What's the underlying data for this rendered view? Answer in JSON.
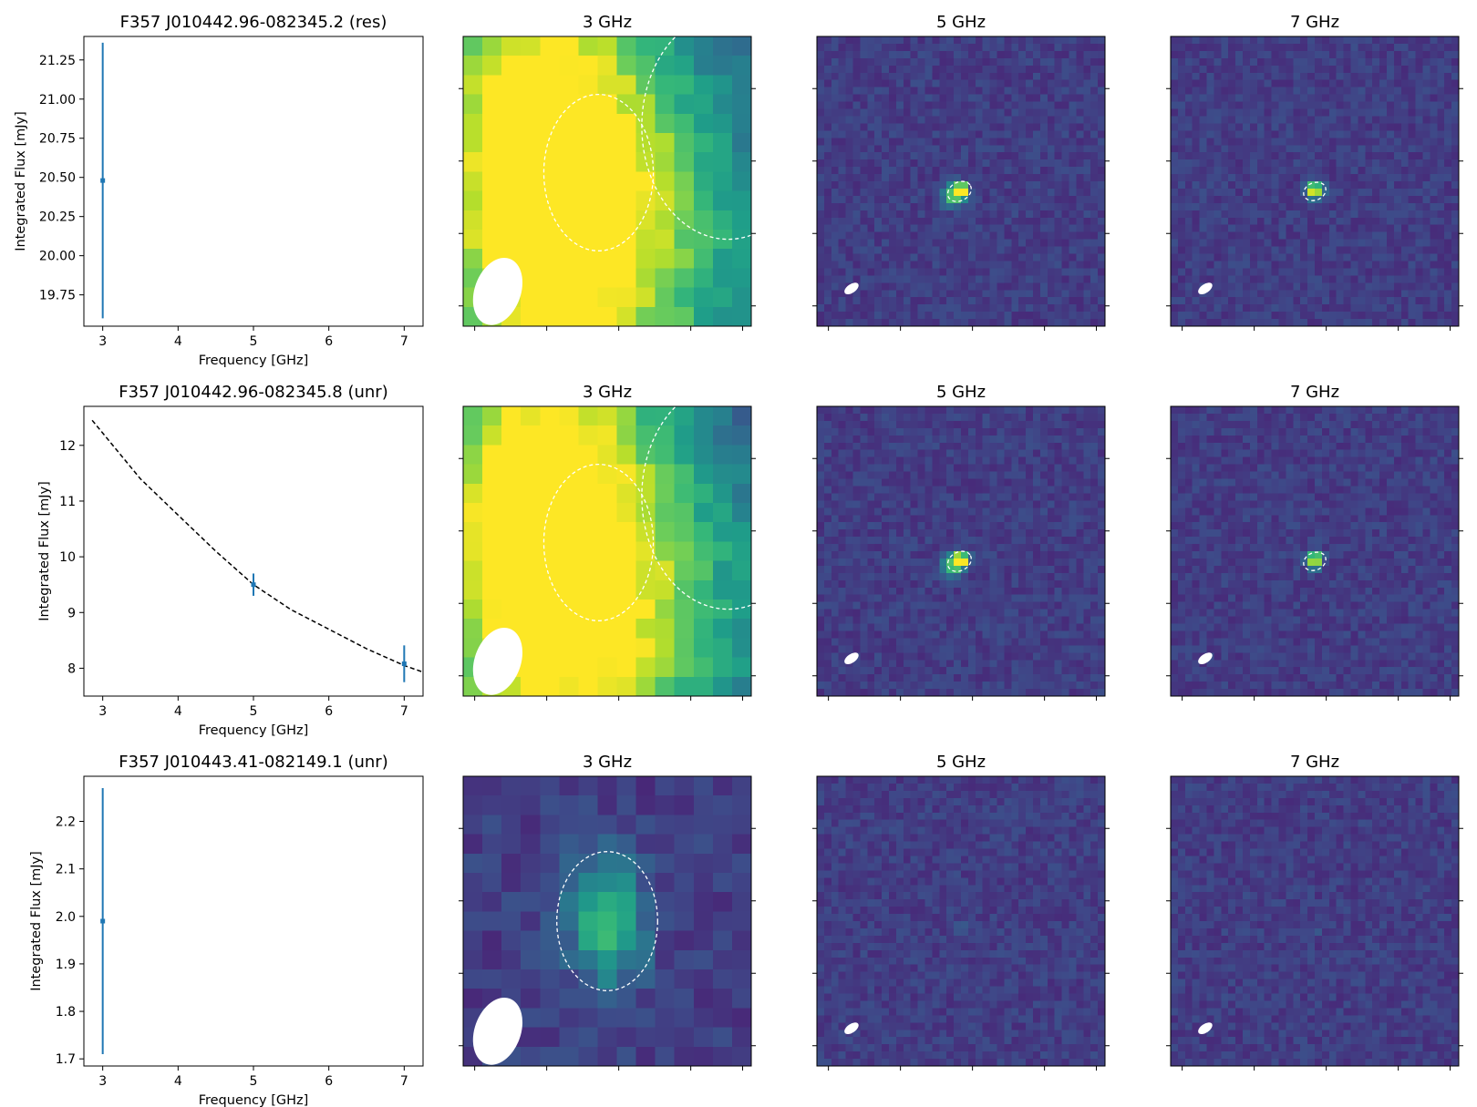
{
  "figure": {
    "background": "#ffffff",
    "errorbar_color": "#1f77b4",
    "model_line_color": "#000000",
    "contour_color": "#ffffff",
    "beam_color": "#ffffff",
    "colormap": "viridis"
  },
  "chart_data": [
    {
      "type": "scatter",
      "title": "F357 J010442.96-082345.2 (res)",
      "xlabel": "Frequency [GHz]",
      "ylabel": "Integrated Flux [mJy]",
      "xlim": [
        2.75,
        7.25
      ],
      "ylim": [
        19.55,
        21.4
      ],
      "xticks": [
        3,
        4,
        5,
        6,
        7
      ],
      "yticks": [
        19.75,
        20.0,
        20.25,
        20.5,
        20.75,
        21.0,
        21.25
      ],
      "ytick_labels": [
        "19.75",
        "20.00",
        "20.25",
        "20.50",
        "20.75",
        "21.00",
        "21.25"
      ],
      "series": [
        {
          "points": [
            {
              "x": 3,
              "y": 20.48,
              "yerr": 0.88
            }
          ]
        }
      ],
      "model_curve": null
    },
    {
      "type": "image",
      "title": "3 GHz",
      "colormap": "viridis",
      "pixel_grid": [
        15,
        15
      ],
      "sources": [
        [
          0.39,
          0.65,
          0.74,
          0.55,
          0.72
        ],
        [
          0.88,
          0.26,
          0.42,
          0.45,
          0.9
        ]
      ],
      "noise": 0.07,
      "seed": 11,
      "ellipses": [
        [
          0.47,
          0.47,
          0.19,
          0.27,
          0.0
        ],
        [
          0.92,
          0.31,
          0.3,
          0.39,
          0.0
        ]
      ],
      "beam": [
        0.12,
        0.12,
        0.08,
        0.12,
        0.35
      ]
    },
    {
      "type": "image",
      "title": "5 GHz",
      "colormap": "viridis",
      "pixel_grid": [
        40,
        40
      ],
      "sources": [
        [
          1.0,
          0.5,
          0.53,
          0.025,
          0.025
        ],
        [
          0.55,
          0.47,
          0.55,
          0.035,
          0.035
        ]
      ],
      "noise": 0.06,
      "seed": 22,
      "ellipses": [
        [
          0.495,
          0.535,
          0.043,
          0.032,
          -0.5
        ]
      ],
      "beam": [
        0.12,
        0.13,
        0.028,
        0.015,
        -0.6
      ]
    },
    {
      "type": "image",
      "title": "7 GHz",
      "colormap": "viridis",
      "pixel_grid": [
        40,
        40
      ],
      "sources": [
        [
          1.0,
          0.5,
          0.53,
          0.025,
          0.025
        ]
      ],
      "noise": 0.06,
      "seed": 33,
      "ellipses": [
        [
          0.5,
          0.535,
          0.04,
          0.03,
          -0.4
        ]
      ],
      "beam": [
        0.12,
        0.13,
        0.028,
        0.015,
        -0.6
      ]
    },
    {
      "type": "line",
      "title": "F357 J010442.96-082345.8 (unr)",
      "xlabel": "Frequency [GHz]",
      "ylabel": "Integrated Flux [mJy]",
      "xlim": [
        2.75,
        7.25
      ],
      "ylim": [
        7.5,
        12.7
      ],
      "xticks": [
        3,
        4,
        5,
        6,
        7
      ],
      "yticks": [
        8,
        9,
        10,
        11,
        12
      ],
      "ytick_labels": [
        "8",
        "9",
        "10",
        "11",
        "12"
      ],
      "series": [
        {
          "points": [
            {
              "x": 5,
              "y": 9.5,
              "yerr": 0.2
            },
            {
              "x": 7,
              "y": 8.08,
              "yerr": 0.33
            }
          ]
        }
      ],
      "model_curve": {
        "x_range": [
          2.86,
          7.25
        ],
        "points": [
          [
            2.86,
            12.45
          ],
          [
            3.5,
            11.4
          ],
          [
            4.0,
            10.75
          ],
          [
            4.5,
            10.1
          ],
          [
            5.0,
            9.5
          ],
          [
            5.5,
            9.05
          ],
          [
            6.0,
            8.7
          ],
          [
            6.5,
            8.35
          ],
          [
            7.0,
            8.05
          ],
          [
            7.25,
            7.93
          ]
        ],
        "style": "dashed"
      }
    },
    {
      "type": "image",
      "title": "3 GHz",
      "colormap": "viridis",
      "pixel_grid": [
        15,
        15
      ],
      "sources": [
        [
          0.39,
          0.65,
          0.74,
          0.55,
          0.72
        ],
        [
          0.88,
          0.26,
          0.42,
          0.45,
          0.9
        ]
      ],
      "noise": 0.07,
      "seed": 44,
      "ellipses": [
        [
          0.47,
          0.47,
          0.19,
          0.27,
          0.0
        ],
        [
          0.92,
          0.31,
          0.3,
          0.39,
          0.0
        ]
      ],
      "beam": [
        0.12,
        0.12,
        0.08,
        0.12,
        0.35
      ]
    },
    {
      "type": "image",
      "title": "5 GHz",
      "colormap": "viridis",
      "pixel_grid": [
        40,
        40
      ],
      "sources": [
        [
          1.0,
          0.5,
          0.53,
          0.025,
          0.025
        ],
        [
          0.55,
          0.47,
          0.55,
          0.035,
          0.035
        ]
      ],
      "noise": 0.06,
      "seed": 55,
      "ellipses": [
        [
          0.495,
          0.535,
          0.043,
          0.032,
          -0.5
        ]
      ],
      "beam": [
        0.12,
        0.13,
        0.028,
        0.015,
        -0.6
      ]
    },
    {
      "type": "image",
      "title": "7 GHz",
      "colormap": "viridis",
      "pixel_grid": [
        40,
        40
      ],
      "sources": [
        [
          1.0,
          0.5,
          0.53,
          0.025,
          0.025
        ]
      ],
      "noise": 0.06,
      "seed": 66,
      "ellipses": [
        [
          0.5,
          0.535,
          0.04,
          0.03,
          -0.4
        ]
      ],
      "beam": [
        0.12,
        0.13,
        0.028,
        0.015,
        -0.6
      ]
    },
    {
      "type": "scatter",
      "title": "F357 J010443.41-082149.1 (unr)",
      "xlabel": "Frequency [GHz]",
      "ylabel": "Integrated Flux [mJy]",
      "xlim": [
        2.75,
        7.25
      ],
      "ylim": [
        1.685,
        2.295
      ],
      "xticks": [
        3,
        4,
        5,
        6,
        7
      ],
      "yticks": [
        1.7,
        1.8,
        1.9,
        2.0,
        2.1,
        2.2
      ],
      "ytick_labels": [
        "1.7",
        "1.8",
        "1.9",
        "2.0",
        "2.1",
        "2.2"
      ],
      "series": [
        {
          "points": [
            {
              "x": 3,
              "y": 1.99,
              "yerr": 0.28
            }
          ]
        }
      ],
      "model_curve": null
    },
    {
      "type": "image",
      "title": "3 GHz",
      "colormap": "viridis",
      "pixel_grid": [
        15,
        15
      ],
      "sources": [
        [
          0.5,
          0.5,
          0.5,
          0.13,
          0.22
        ]
      ],
      "noise": 0.07,
      "seed": 77,
      "ellipses": [
        [
          0.5,
          0.5,
          0.175,
          0.24,
          0.0
        ]
      ],
      "beam": [
        0.12,
        0.12,
        0.08,
        0.12,
        0.35
      ]
    },
    {
      "type": "image",
      "title": "5 GHz",
      "colormap": "viridis",
      "pixel_grid": [
        40,
        40
      ],
      "sources": [
        [
          0.18,
          0.5,
          0.53,
          0.02,
          0.02
        ]
      ],
      "noise": 0.06,
      "seed": 88,
      "ellipses": [],
      "beam": [
        0.12,
        0.13,
        0.028,
        0.015,
        -0.6
      ]
    },
    {
      "type": "image",
      "title": "7 GHz",
      "colormap": "viridis",
      "pixel_grid": [
        40,
        40
      ],
      "sources": [
        [
          0.1,
          0.5,
          0.53,
          0.02,
          0.02
        ]
      ],
      "noise": 0.06,
      "seed": 99,
      "ellipses": [],
      "beam": [
        0.12,
        0.13,
        0.028,
        0.015,
        -0.6
      ]
    }
  ]
}
